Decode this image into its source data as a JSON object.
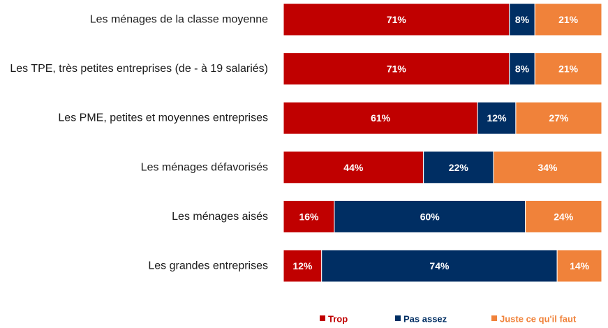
{
  "chart_data": {
    "type": "bar",
    "orientation": "horizontal",
    "stacked": true,
    "title": "",
    "categories": [
      "Les ménages de la classe moyenne",
      "Les TPE, très petites entreprises (de - à 19 salariés)",
      "Les PME, petites et moyennes entreprises",
      "Les ménages défavorisés",
      "Les ménages aisés",
      "Les grandes entreprises"
    ],
    "series": [
      {
        "name": "Trop",
        "color": "#c00000",
        "values": [
          71,
          71,
          61,
          44,
          16,
          12
        ]
      },
      {
        "name": "Pas assez",
        "color": "#002e63",
        "values": [
          8,
          8,
          12,
          22,
          60,
          74
        ]
      },
      {
        "name": "Juste ce qu'il faut",
        "color": "#f0823a",
        "values": [
          21,
          21,
          27,
          34,
          24,
          14
        ]
      }
    ],
    "value_suffix": "%",
    "xlim": [
      0,
      100
    ],
    "legend_position": "bottom-right"
  }
}
